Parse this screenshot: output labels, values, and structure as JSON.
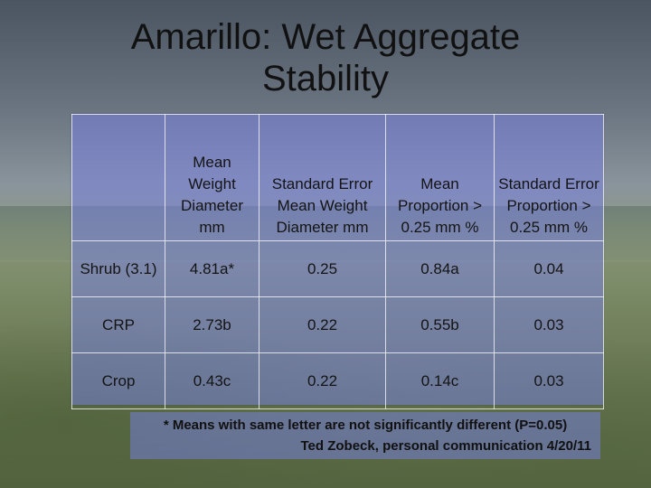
{
  "title_line1": "Amarillo: Wet Aggregate",
  "title_line2": "Stability",
  "table": {
    "headers": [
      "",
      "Mean Weight Diameter mm",
      "Standard Error Mean Weight Diameter mm",
      "Mean Proportion > 0.25 mm %",
      "Standard Error Proportion > 0.25 mm %"
    ],
    "rows": [
      {
        "label": "Shrub (3.1)",
        "mwd": "4.81a*",
        "se_mwd": "0.25",
        "prop": "0.84a",
        "se_prop": "0.04"
      },
      {
        "label": "CRP",
        "mwd": "2.73b",
        "se_mwd": "0.22",
        "prop": "0.55b",
        "se_prop": "0.03"
      },
      {
        "label": "Crop",
        "mwd": "0.43c",
        "se_mwd": "0.22",
        "prop": "0.14c",
        "se_prop": "0.03"
      }
    ]
  },
  "footnote": {
    "line1": "* Means with same letter are not significantly different (P=0.05)",
    "line2": "Ted Zobeck, personal communication 4/20/11"
  }
}
